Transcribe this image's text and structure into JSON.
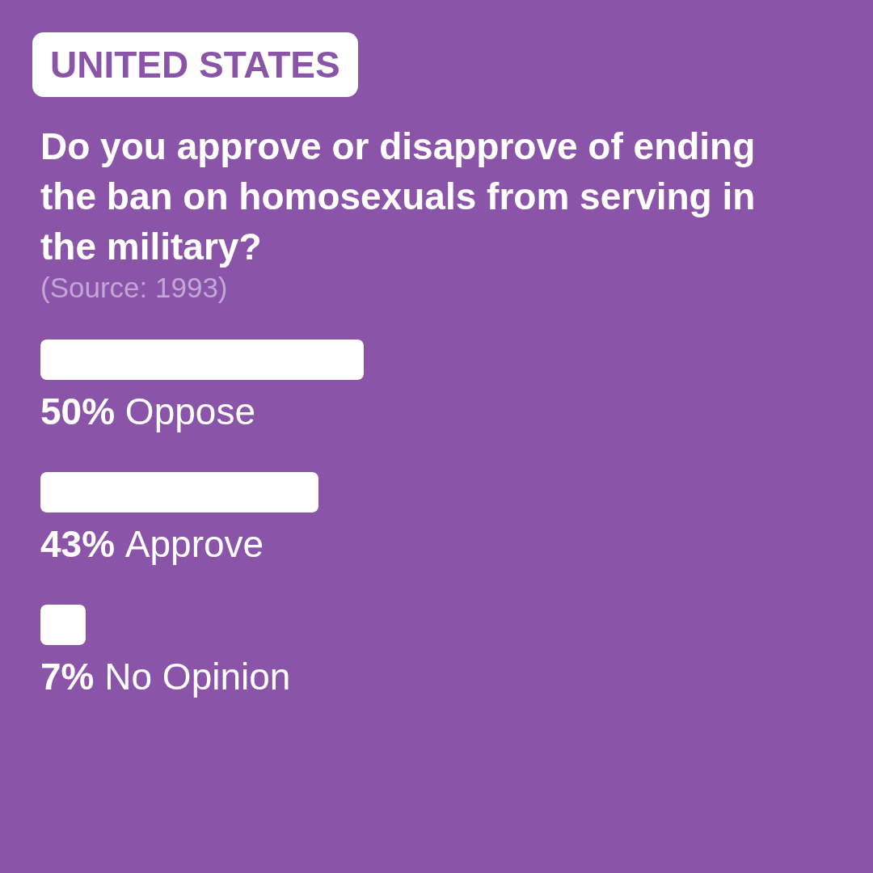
{
  "chart_data": {
    "type": "bar",
    "orientation": "horizontal",
    "title": "Do you approve or disapprove of ending the ban on homosexuals from serving in the military?",
    "subtitle": "(Source: 1993)",
    "annotations": [
      "UNITED STATES"
    ],
    "categories": [
      "Oppose",
      "Approve",
      "No Opinion"
    ],
    "values": [
      50,
      43,
      7
    ],
    "color": "#ffffff",
    "value_labels": [
      "50%",
      "43%",
      "7%"
    ]
  }
}
